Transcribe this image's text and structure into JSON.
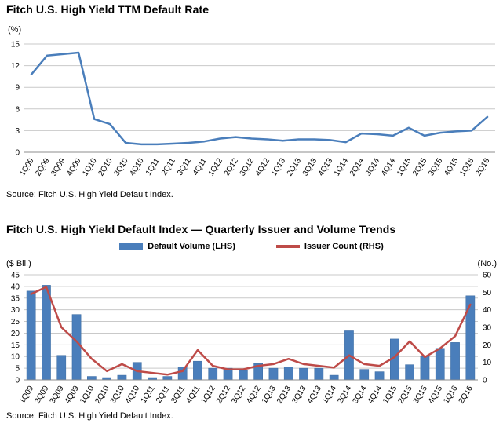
{
  "chart_data": [
    {
      "type": "line",
      "title": "Fitch U.S. High Yield TTM Default Rate",
      "y_unit": "(%)",
      "source": "Source: Fitch U.S. High Yield Default Index.",
      "ylim": [
        0,
        15
      ],
      "ytick_step": 3,
      "grid": true,
      "legend_position": "none",
      "color": "#4a7ebb",
      "categories": [
        "1Q09",
        "2Q09",
        "3Q09",
        "4Q09",
        "1Q10",
        "2Q10",
        "3Q10",
        "4Q10",
        "1Q11",
        "2Q11",
        "3Q11",
        "4Q11",
        "1Q12",
        "2Q12",
        "3Q12",
        "4Q12",
        "1Q13",
        "2Q13",
        "3Q13",
        "4Q13",
        "1Q14",
        "2Q14",
        "3Q14",
        "4Q14",
        "1Q15",
        "2Q15",
        "3Q15",
        "4Q15",
        "1Q16",
        "2Q16"
      ],
      "values": [
        10.8,
        13.4,
        13.6,
        13.8,
        4.6,
        3.9,
        1.3,
        1.1,
        1.1,
        1.2,
        1.3,
        1.5,
        1.9,
        2.1,
        1.9,
        1.8,
        1.6,
        1.8,
        1.8,
        1.7,
        1.4,
        2.6,
        2.5,
        2.3,
        3.4,
        2.3,
        2.7,
        2.9,
        3.0,
        4.9
      ]
    },
    {
      "type": "combo",
      "title": "Fitch U.S. High Yield Default Index — Quarterly Issuer and Volume Trends",
      "y_left_unit": "($ Bil.)",
      "y_right_unit": "(No.)",
      "source": "Source: Fitch U.S. High Yield Default Index.",
      "ylim_left": [
        0,
        45
      ],
      "ytick_step_left": 5,
      "ylim_right": [
        0,
        60
      ],
      "ytick_step_right": 10,
      "grid": true,
      "legend_position": "top",
      "categories": [
        "1Q09",
        "2Q09",
        "3Q09",
        "4Q09",
        "1Q10",
        "2Q10",
        "3Q10",
        "4Q10",
        "1Q11",
        "2Q11",
        "3Q11",
        "4Q11",
        "1Q12",
        "2Q12",
        "3Q12",
        "4Q12",
        "1Q13",
        "2Q13",
        "3Q13",
        "4Q13",
        "1Q14",
        "2Q14",
        "3Q14",
        "4Q14",
        "1Q15",
        "2Q15",
        "3Q15",
        "4Q15",
        "1Q16",
        "2Q16"
      ],
      "series": [
        {
          "name": "Default Volume (LHS)",
          "type": "bar",
          "axis": "left",
          "color": "#4a7ebb",
          "values": [
            38,
            40.5,
            10.5,
            28,
            1.5,
            1,
            2,
            7.5,
            1,
            1.5,
            5.5,
            8,
            5,
            5,
            4,
            7,
            5,
            5.5,
            5,
            5,
            2,
            21,
            4.5,
            3.5,
            17.5,
            6.5,
            10,
            13.5,
            16,
            36
          ]
        },
        {
          "name": "Issuer Count (RHS)",
          "type": "line",
          "axis": "right",
          "color": "#be4b48",
          "values": [
            49,
            53,
            30,
            22,
            12,
            5,
            9,
            5,
            4,
            3,
            5,
            17,
            8,
            6,
            6,
            8,
            9,
            12,
            9,
            8,
            7,
            14,
            9,
            8,
            13,
            22,
            13,
            18,
            25,
            43
          ]
        }
      ]
    }
  ]
}
